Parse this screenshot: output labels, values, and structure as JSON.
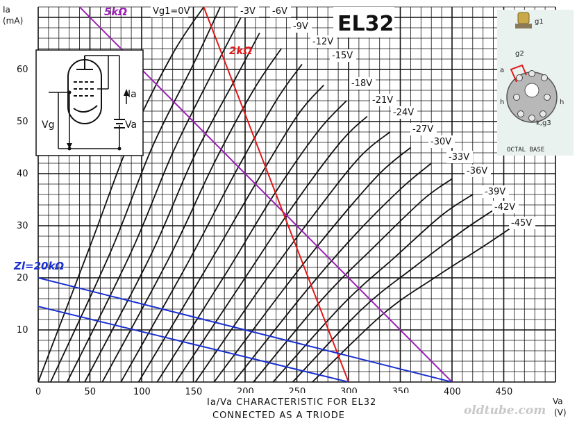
{
  "chart_data": {
    "type": "line",
    "title": "EL32",
    "caption_line1": "Ia/Va CHARACTERISTIC FOR EL32",
    "caption_line2": "CONNECTED AS A TRIODE",
    "xlabel": "Va",
    "xunit": "(V)",
    "ylabel": "Ia",
    "yunit": "(mA)",
    "xlim": [
      0,
      500
    ],
    "ylim": [
      0,
      72
    ],
    "x_ticks": [
      "0",
      "50",
      "100",
      "150",
      "200",
      "250",
      "300",
      "350",
      "400",
      "450"
    ],
    "y_ticks": [
      "10",
      "20",
      "30",
      "40",
      "50",
      "60"
    ],
    "grid": true,
    "curve_labels": [
      "Vg1=0V",
      "-3V",
      "-6V",
      "-9V",
      "-12V",
      "-15V",
      "-18V",
      "-21V",
      "-24V",
      "-27V",
      "-30V",
      "-33V",
      "-36V",
      "-39V",
      "-42V",
      "-45V"
    ],
    "curves": [
      {
        "vg": 0,
        "points": [
          [
            0,
            0
          ],
          [
            50,
            26
          ],
          [
            90,
            47
          ],
          [
            130,
            63
          ],
          [
            160,
            72
          ]
        ]
      },
      {
        "vg": -3,
        "points": [
          [
            12,
            0
          ],
          [
            70,
            25
          ],
          [
            110,
            45
          ],
          [
            150,
            61
          ],
          [
            176,
            72
          ]
        ]
      },
      {
        "vg": -6,
        "points": [
          [
            28,
            0
          ],
          [
            90,
            25
          ],
          [
            130,
            44
          ],
          [
            170,
            60
          ],
          [
            196,
            70
          ]
        ]
      },
      {
        "vg": -9,
        "points": [
          [
            45,
            0
          ],
          [
            108,
            24
          ],
          [
            150,
            43
          ],
          [
            190,
            58
          ],
          [
            214,
            67
          ]
        ]
      },
      {
        "vg": -12,
        "points": [
          [
            62,
            0
          ],
          [
            127,
            24
          ],
          [
            170,
            42
          ],
          [
            208,
            56
          ],
          [
            235,
            64
          ]
        ]
      },
      {
        "vg": -15,
        "points": [
          [
            80,
            0
          ],
          [
            145,
            23
          ],
          [
            190,
            40
          ],
          [
            230,
            54
          ],
          [
            255,
            61
          ]
        ]
      },
      {
        "vg": -18,
        "points": [
          [
            97,
            0
          ],
          [
            163,
            22
          ],
          [
            210,
            38
          ],
          [
            250,
            51
          ],
          [
            276,
            57
          ]
        ]
      },
      {
        "vg": -21,
        "points": [
          [
            115,
            0
          ],
          [
            182,
            21
          ],
          [
            228,
            36
          ],
          [
            270,
            48
          ],
          [
            298,
            54
          ]
        ]
      },
      {
        "vg": -24,
        "points": [
          [
            133,
            0
          ],
          [
            200,
            20
          ],
          [
            247,
            34
          ],
          [
            292,
            46
          ],
          [
            318,
            51
          ]
        ]
      },
      {
        "vg": -27,
        "points": [
          [
            152,
            0
          ],
          [
            218,
            19
          ],
          [
            266,
            32
          ],
          [
            310,
            43
          ],
          [
            340,
            48
          ]
        ]
      },
      {
        "vg": -30,
        "points": [
          [
            170,
            0
          ],
          [
            238,
            18
          ],
          [
            286,
            30
          ],
          [
            330,
            40
          ],
          [
            360,
            45
          ]
        ]
      },
      {
        "vg": -33,
        "points": [
          [
            189,
            0
          ],
          [
            257,
            17
          ],
          [
            305,
            28
          ],
          [
            350,
            37
          ],
          [
            380,
            42
          ]
        ]
      },
      {
        "vg": -36,
        "points": [
          [
            208,
            0
          ],
          [
            275,
            16
          ],
          [
            325,
            26
          ],
          [
            372,
            35
          ],
          [
            400,
            39
          ]
        ]
      },
      {
        "vg": -39,
        "points": [
          [
            227,
            0
          ],
          [
            295,
            15
          ],
          [
            345,
            24
          ],
          [
            390,
            32
          ],
          [
            420,
            36
          ]
        ]
      },
      {
        "vg": -42,
        "points": [
          [
            246,
            0
          ],
          [
            313,
            14
          ],
          [
            363,
            22
          ],
          [
            410,
            29
          ],
          [
            440,
            33
          ]
        ]
      },
      {
        "vg": -45,
        "points": [
          [
            265,
            0
          ],
          [
            333,
            13
          ],
          [
            383,
            20
          ],
          [
            430,
            26
          ],
          [
            460,
            30
          ]
        ]
      }
    ],
    "load_lines": [
      {
        "name": "5kΩ",
        "color": "#9b1fb5",
        "points": [
          [
            0,
            80
          ],
          [
            400,
            0
          ]
        ]
      },
      {
        "name": "2kΩ",
        "color": "#e01818",
        "points": [
          [
            160,
            72
          ],
          [
            300,
            0
          ]
        ]
      },
      {
        "name": "Zl=20kΩ",
        "color": "#1a2fd0",
        "points": [
          [
            0,
            20
          ],
          [
            400,
            0
          ]
        ]
      },
      {
        "name": "",
        "color": "#1a2fd0",
        "points": [
          [
            0,
            14.5
          ],
          [
            300,
            0
          ]
        ]
      }
    ]
  },
  "inset": {
    "schematic": {
      "current_label": "Ia",
      "grid_label": "Vg",
      "anode_label": "Va"
    },
    "base": {
      "title": "OCTAL BASE",
      "pins": {
        "g1": "g1",
        "g2": "g2",
        "a": "a",
        "h_left": "h",
        "h_right": "h",
        "k": "k,g3"
      }
    }
  },
  "watermark": "oldtube.com"
}
